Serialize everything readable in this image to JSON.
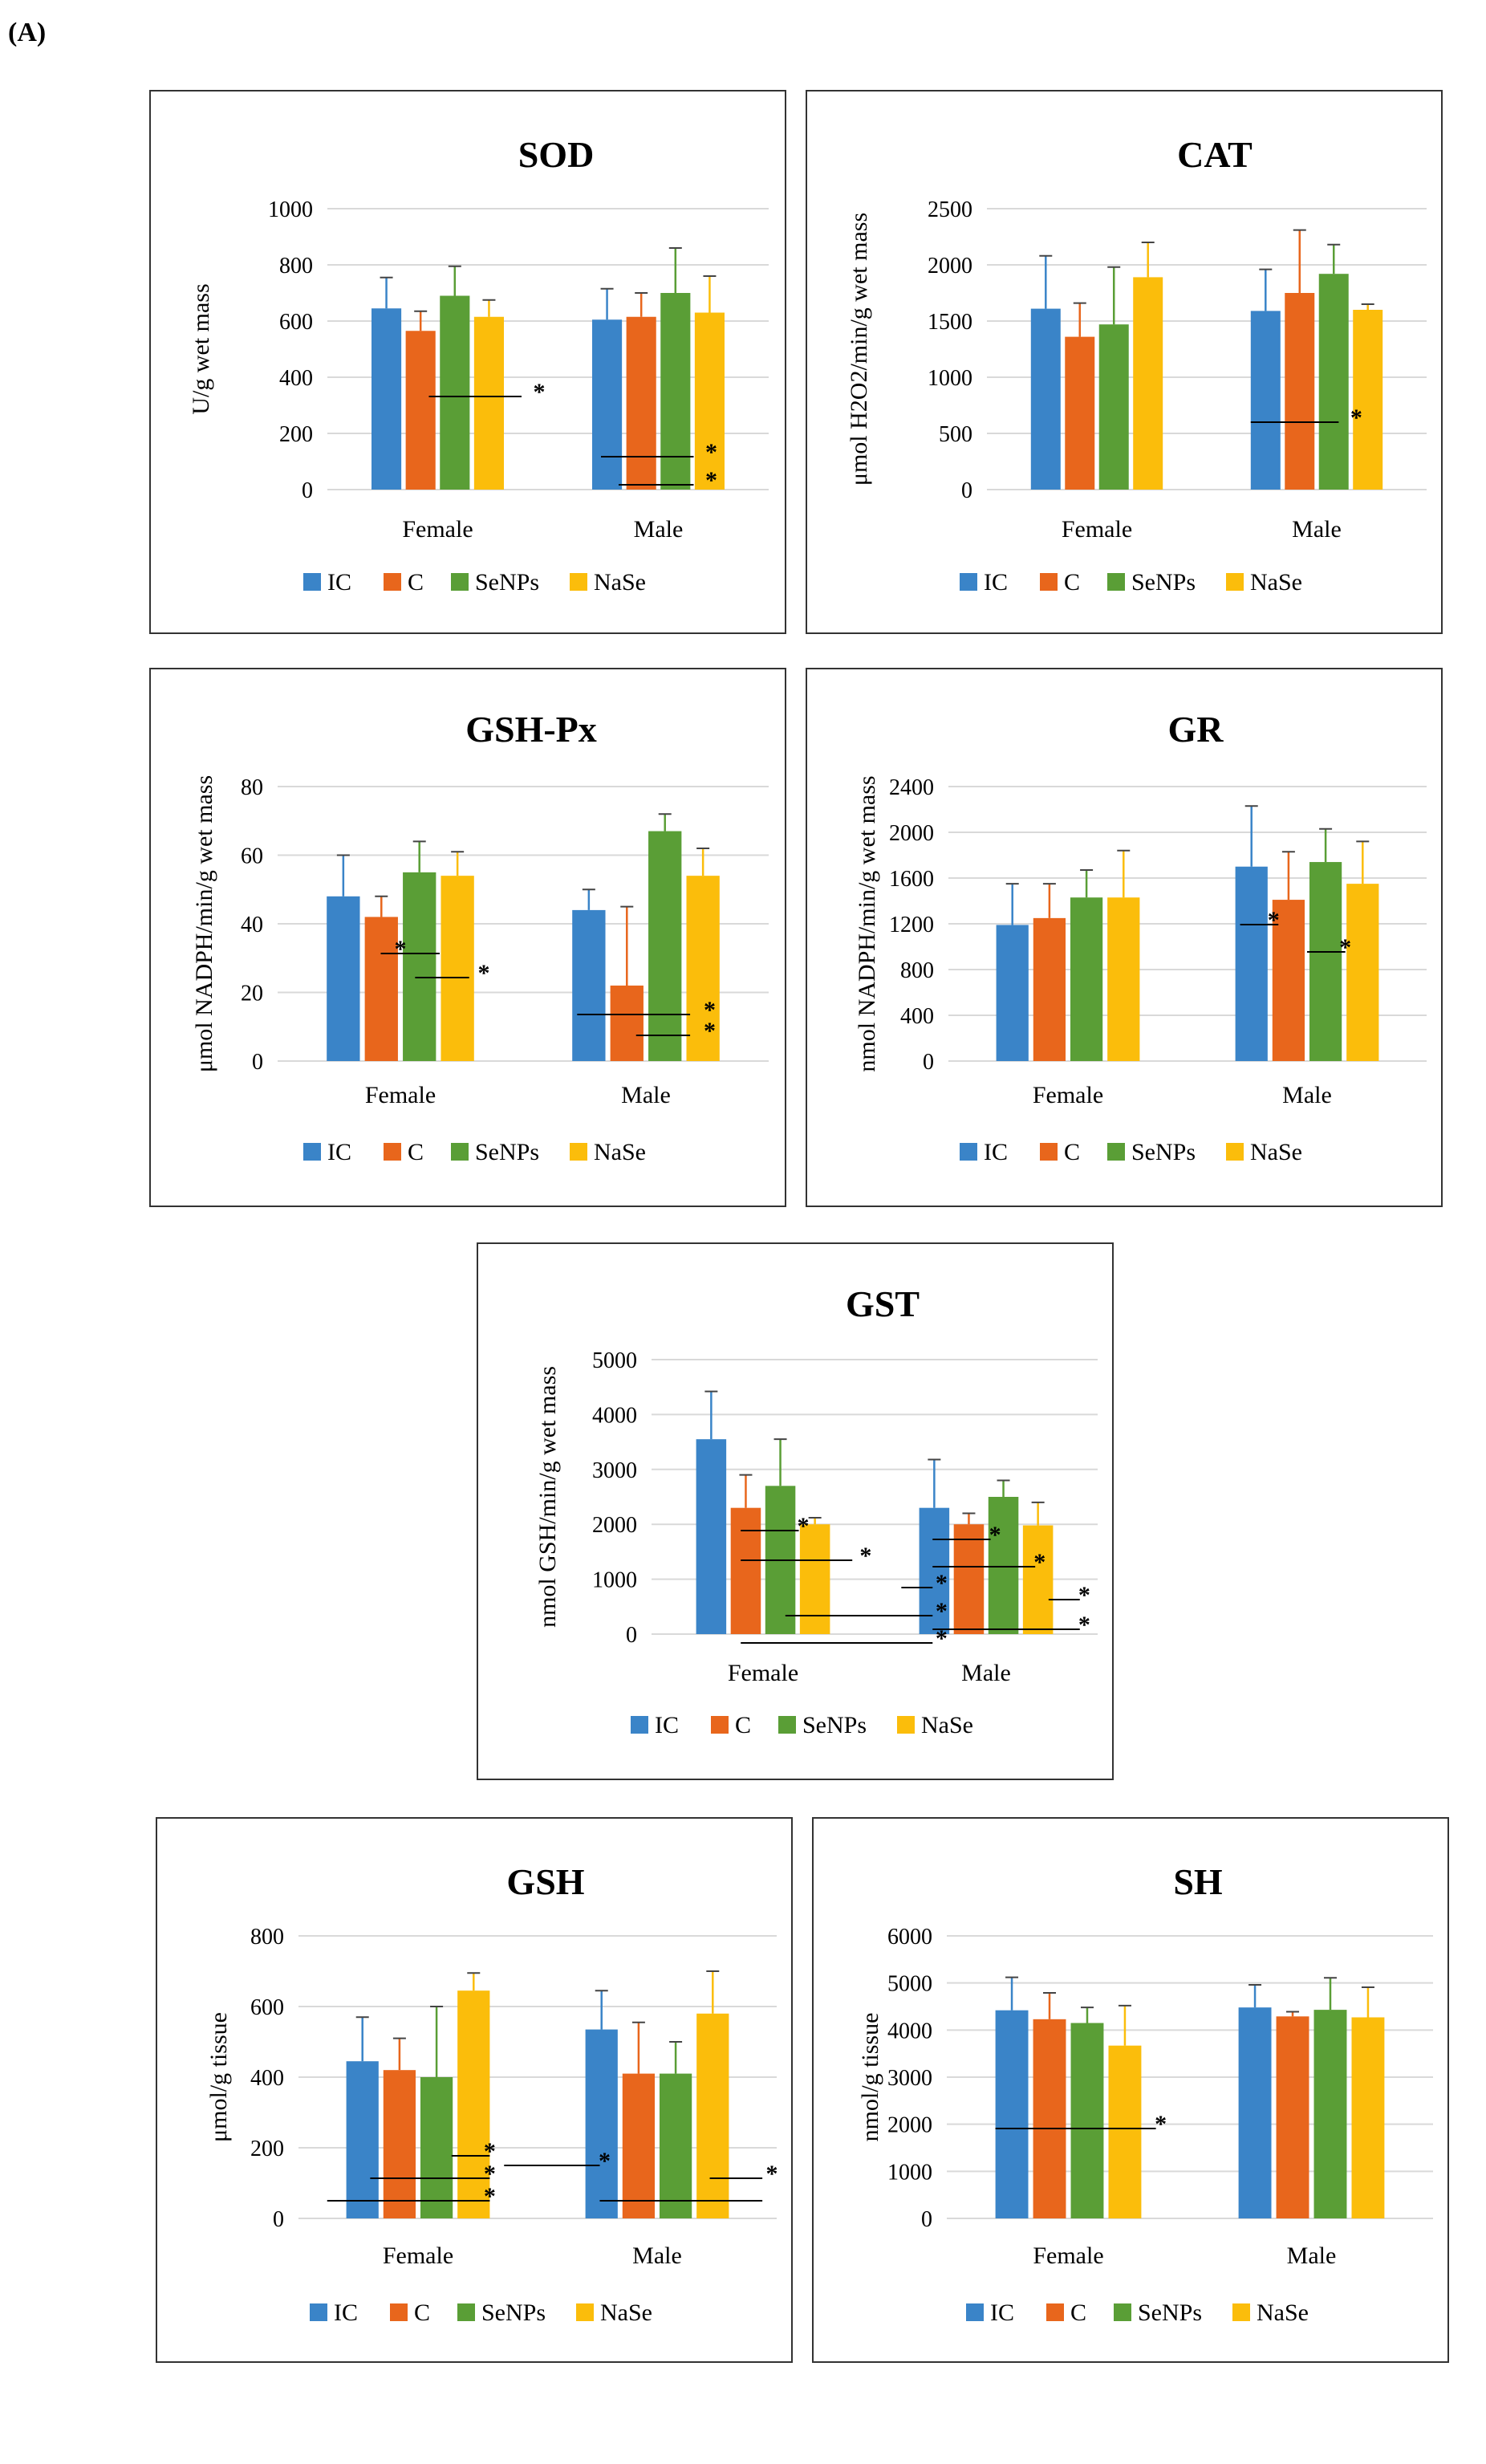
{
  "panel_label": "(A)",
  "colors": {
    "IC": "#3a84c8",
    "C": "#e8661c",
    "SeNPs": "#5a9e36",
    "NaSe": "#fbbd0b"
  },
  "legend": [
    "IC",
    "C",
    "SeNPs",
    "NaSe"
  ],
  "chart_data": [
    {
      "id": "sod",
      "type": "bar",
      "title": "SOD",
      "ylabel": "U/g wet mass",
      "ylim": [
        0,
        1000
      ],
      "ticks": [
        0,
        200,
        400,
        600,
        800,
        1000
      ],
      "categories": [
        "Female",
        "Male"
      ],
      "series": [
        {
          "name": "IC",
          "values": [
            645,
            605
          ],
          "errors": [
            110,
            110
          ]
        },
        {
          "name": "C",
          "values": [
            565,
            615
          ],
          "errors": [
            70,
            85
          ]
        },
        {
          "name": "SeNPs",
          "values": [
            690,
            700
          ],
          "errors": [
            105,
            160
          ]
        },
        {
          "name": "NaSe",
          "values": [
            615,
            630
          ],
          "errors": [
            60,
            130
          ]
        }
      ],
      "annotations": [
        "*",
        "*",
        "*"
      ]
    },
    {
      "id": "cat",
      "type": "bar",
      "title": "CAT",
      "ylabel": "μmol H2O2/min/g wet mass",
      "ylim": [
        0,
        2500
      ],
      "ticks": [
        0,
        500,
        1000,
        1500,
        2000,
        2500
      ],
      "categories": [
        "Female",
        "Male"
      ],
      "series": [
        {
          "name": "IC",
          "values": [
            1610,
            1590
          ],
          "errors": [
            470,
            370
          ]
        },
        {
          "name": "C",
          "values": [
            1360,
            1750
          ],
          "errors": [
            300,
            560
          ]
        },
        {
          "name": "SeNPs",
          "values": [
            1470,
            1920
          ],
          "errors": [
            510,
            260
          ]
        },
        {
          "name": "NaSe",
          "values": [
            1890,
            1600
          ],
          "errors": [
            310,
            50
          ]
        }
      ],
      "annotations": [
        "*"
      ]
    },
    {
      "id": "gshpx",
      "type": "bar",
      "title": "GSH-Px",
      "ylabel": "μmol NADPH/min/g wet mass",
      "ylim": [
        0,
        80
      ],
      "ticks": [
        0,
        20,
        40,
        60,
        80
      ],
      "categories": [
        "Female",
        "Male"
      ],
      "series": [
        {
          "name": "IC",
          "values": [
            48,
            44
          ],
          "errors": [
            12,
            6
          ]
        },
        {
          "name": "C",
          "values": [
            42,
            22
          ],
          "errors": [
            6,
            23
          ]
        },
        {
          "name": "SeNPs",
          "values": [
            55,
            67
          ],
          "errors": [
            9,
            5
          ]
        },
        {
          "name": "NaSe",
          "values": [
            54,
            54
          ],
          "errors": [
            7,
            8
          ]
        }
      ],
      "annotations": [
        "*",
        "*",
        "*",
        "*"
      ]
    },
    {
      "id": "gr",
      "type": "bar",
      "title": "GR",
      "ylabel": "nmol NADPH/min/g wet mass",
      "ylim": [
        0,
        2400
      ],
      "ticks": [
        0,
        400,
        800,
        1200,
        1600,
        2000,
        2400
      ],
      "categories": [
        "Female",
        "Male"
      ],
      "series": [
        {
          "name": "IC",
          "values": [
            1190,
            1700
          ],
          "errors": [
            360,
            530
          ]
        },
        {
          "name": "C",
          "values": [
            1250,
            1410
          ],
          "errors": [
            300,
            420
          ]
        },
        {
          "name": "SeNPs",
          "values": [
            1430,
            1740
          ],
          "errors": [
            240,
            290
          ]
        },
        {
          "name": "NaSe",
          "values": [
            1430,
            1550
          ],
          "errors": [
            410,
            370
          ]
        }
      ],
      "annotations": [
        "*",
        "*"
      ]
    },
    {
      "id": "gst",
      "type": "bar",
      "title": "GST",
      "ylabel": "nmol GSH/min/g wet mass",
      "ylim": [
        0,
        5000
      ],
      "ticks": [
        0,
        1000,
        2000,
        3000,
        4000,
        5000
      ],
      "categories": [
        "Female",
        "Male"
      ],
      "series": [
        {
          "name": "IC",
          "values": [
            3550,
            2300
          ],
          "errors": [
            870,
            880
          ]
        },
        {
          "name": "C",
          "values": [
            2300,
            2000
          ],
          "errors": [
            600,
            200
          ]
        },
        {
          "name": "SeNPs",
          "values": [
            2700,
            2500
          ],
          "errors": [
            850,
            300
          ]
        },
        {
          "name": "NaSe",
          "values": [
            2000,
            1980
          ],
          "errors": [
            120,
            420
          ]
        }
      ],
      "annotations": [
        "*",
        "*",
        "*",
        "*",
        "*",
        "*",
        "*",
        "*",
        "*"
      ]
    },
    {
      "id": "gsh",
      "type": "bar",
      "title": "GSH",
      "ylabel": "μmol/g tissue",
      "ylim": [
        0,
        800
      ],
      "ticks": [
        0,
        200,
        400,
        600,
        800
      ],
      "categories": [
        "Female",
        "Male"
      ],
      "series": [
        {
          "name": "IC",
          "values": [
            445,
            535
          ],
          "errors": [
            125,
            110
          ]
        },
        {
          "name": "C",
          "values": [
            420,
            410
          ],
          "errors": [
            90,
            145
          ]
        },
        {
          "name": "SeNPs",
          "values": [
            400,
            410
          ],
          "errors": [
            200,
            90
          ]
        },
        {
          "name": "NaSe",
          "values": [
            645,
            580
          ],
          "errors": [
            50,
            120
          ]
        }
      ],
      "annotations": [
        "*",
        "*",
        "*",
        "*",
        "*"
      ]
    },
    {
      "id": "sh",
      "type": "bar",
      "title": "SH",
      "ylabel": "nmol/g tissue",
      "ylim": [
        0,
        6000
      ],
      "ticks": [
        0,
        1000,
        2000,
        3000,
        4000,
        5000,
        6000
      ],
      "categories": [
        "Female",
        "Male"
      ],
      "series": [
        {
          "name": "IC",
          "values": [
            4420,
            4480
          ],
          "errors": [
            700,
            480
          ]
        },
        {
          "name": "C",
          "values": [
            4230,
            4290
          ],
          "errors": [
            560,
            100
          ]
        },
        {
          "name": "SeNPs",
          "values": [
            4150,
            4430
          ],
          "errors": [
            330,
            680
          ]
        },
        {
          "name": "NaSe",
          "values": [
            3670,
            4270
          ],
          "errors": [
            850,
            640
          ]
        }
      ],
      "annotations": [
        "*"
      ]
    }
  ]
}
